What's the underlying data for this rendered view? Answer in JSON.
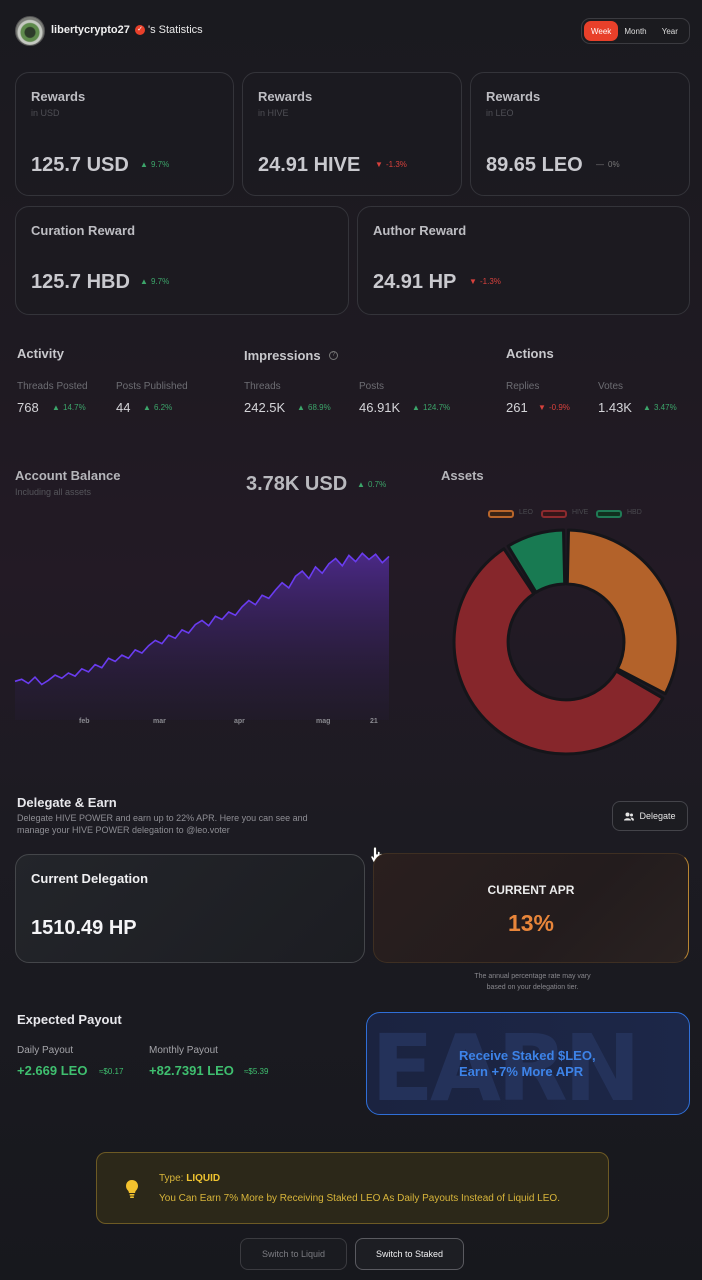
{
  "header": {
    "username": "libertycrypto27",
    "title_suffix": "'s Statistics",
    "periods": [
      "Week",
      "Month",
      "Year"
    ],
    "active_period": "Week"
  },
  "rewards": [
    {
      "title": "Rewards",
      "sub": "in USD",
      "value": "125.7 USD",
      "delta": "9.7%",
      "trend": "up"
    },
    {
      "title": "Rewards",
      "sub": "in HIVE",
      "value": "24.91 HIVE",
      "delta": "-1.3%",
      "trend": "down"
    },
    {
      "title": "Rewards",
      "sub": "in LEO",
      "value": "89.65 LEO",
      "delta": "0%",
      "trend": "flat"
    }
  ],
  "curation": {
    "title": "Curation Reward",
    "value": "125.7 HBD",
    "delta": "9.7%"
  },
  "author": {
    "title": "Author Reward",
    "value": "24.91 HP",
    "delta": "-1.3%"
  },
  "activity": {
    "title": "Activity",
    "threads_label": "Threads Posted",
    "threads_value": "768",
    "threads_delta": "14.7%",
    "posts_label": "Posts Published",
    "posts_value": "44",
    "posts_delta": "6.2%"
  },
  "impressions": {
    "title": "Impressions",
    "threads_label": "Threads",
    "threads_value": "242.5K",
    "threads_delta": "68.9%",
    "posts_label": "Posts",
    "posts_value": "46.91K",
    "posts_delta": "124.7%"
  },
  "actions": {
    "title": "Actions",
    "replies_label": "Replies",
    "replies_value": "261",
    "replies_delta": "-0.9%",
    "votes_label": "Votes",
    "votes_value": "1.43K",
    "votes_delta": "3.47%"
  },
  "balance": {
    "title": "Account Balance",
    "sub": "Including all assets",
    "value": "3.78K USD",
    "delta": "0.7%"
  },
  "chart_data": {
    "type": "area",
    "x_ticks": [
      "feb",
      "mar",
      "apr",
      "mag",
      "21"
    ],
    "values": [
      1.08,
      1.1,
      1.06,
      1.12,
      1.05,
      1.09,
      1.14,
      1.11,
      1.16,
      1.13,
      1.2,
      1.17,
      1.24,
      1.21,
      1.3,
      1.27,
      1.33,
      1.3,
      1.38,
      1.35,
      1.42,
      1.47,
      1.44,
      1.52,
      1.49,
      1.57,
      1.54,
      1.62,
      1.66,
      1.61,
      1.7,
      1.67,
      1.74,
      1.71,
      1.79,
      1.85,
      1.81,
      1.9,
      1.87,
      1.95,
      2.02,
      1.97,
      2.08,
      2.13,
      2.06,
      2.17,
      2.11,
      2.2,
      2.25,
      2.18,
      2.28,
      2.22,
      2.3,
      2.24,
      2.29,
      2.21,
      2.27
    ]
  },
  "assets": {
    "title": "Assets",
    "legend": [
      {
        "name": "LEO",
        "color": "#b8652a"
      },
      {
        "name": "HIVE",
        "color": "#8c2a2e"
      },
      {
        "name": "HBD",
        "color": "#1f7a55"
      }
    ],
    "slices": [
      {
        "name": "LEO",
        "share": 0.33,
        "color": "#b3622a"
      },
      {
        "name": "HIVE",
        "share": 0.58,
        "color": "#86262b"
      },
      {
        "name": "HBD",
        "share": 0.09,
        "color": "#187a52"
      }
    ]
  },
  "delegate": {
    "title": "Delegate & Earn",
    "desc_1": "Delegate HIVE POWER and earn up to 22% APR. Here you can see and",
    "desc_2": "manage your HIVE POWER delegation to @leo.voter",
    "button": "Delegate",
    "current_title": "Current Delegation",
    "current_value": "1510.49 HP",
    "apr_title": "CURRENT APR",
    "apr_value": "13%",
    "apr_note_1": "The annual percentage rate may vary",
    "apr_note_2": "based on your delegation tier."
  },
  "payout": {
    "title": "Expected Payout",
    "daily_label": "Daily Payout",
    "daily_value": "+2.669 LEO",
    "daily_usd": "≈$0.17",
    "monthly_label": "Monthly Payout",
    "monthly_value": "+82.7391 LEO",
    "monthly_usd": "≈$5.39"
  },
  "earn": {
    "bg_word": "EARN",
    "line_1": "Receive Staked $LEO,",
    "line_2": "Earn +7% More APR"
  },
  "tip": {
    "type_label": "Type: ",
    "type_value": "LIQUID",
    "text": "You Can Earn 7% More by Receiving Staked LEO As Daily Payouts Instead of Liquid LEO."
  },
  "switch": {
    "liquid": "Switch to Liquid",
    "staked": "Switch to Staked"
  }
}
